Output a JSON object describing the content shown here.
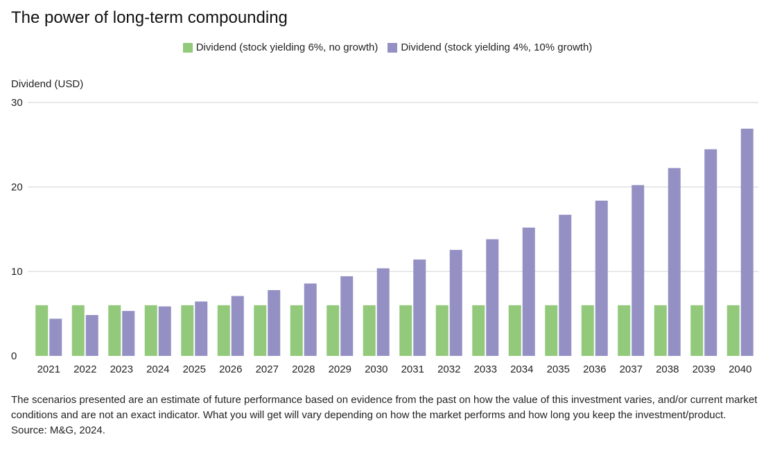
{
  "colors": {
    "series1": "#92c97b",
    "series2": "#9490c4",
    "grid": "#d0d0d0"
  },
  "chart_data": {
    "type": "bar",
    "title": "The power of long-term compounding",
    "ylabel": "Dividend (USD)",
    "xlabel": "",
    "ylim": [
      0,
      30
    ],
    "yticks": [
      "0",
      "10",
      "20",
      "30"
    ],
    "grid": true,
    "legend_position": "top-center",
    "categories": [
      "2021",
      "2022",
      "2023",
      "2024",
      "2025",
      "2026",
      "2027",
      "2028",
      "2029",
      "2030",
      "2031",
      "2032",
      "2033",
      "2034",
      "2035",
      "2036",
      "2037",
      "2038",
      "2039",
      "2040"
    ],
    "series": [
      {
        "name": "Dividend (stock yielding 6%, no growth)",
        "values": [
          6,
          6,
          6,
          6,
          6,
          6,
          6,
          6,
          6,
          6,
          6,
          6,
          6,
          6,
          6,
          6,
          6,
          6,
          6,
          6
        ]
      },
      {
        "name": "Dividend (stock yielding 4%, 10% growth)",
        "values": [
          4.4,
          4.84,
          5.32,
          5.86,
          6.44,
          7.09,
          7.79,
          8.57,
          9.43,
          10.37,
          11.41,
          12.55,
          13.81,
          15.19,
          16.71,
          18.38,
          20.22,
          22.24,
          24.46,
          26.9
        ]
      }
    ]
  },
  "footnote": {
    "text": "The scenarios presented are an estimate of future performance based on evidence from the past on how the value of this investment varies, and/or current market conditions and are not an exact indicator. What you will get will vary depending on how the market performs and how long you keep the investment/product.",
    "source": "Source: M&G, 2024."
  }
}
